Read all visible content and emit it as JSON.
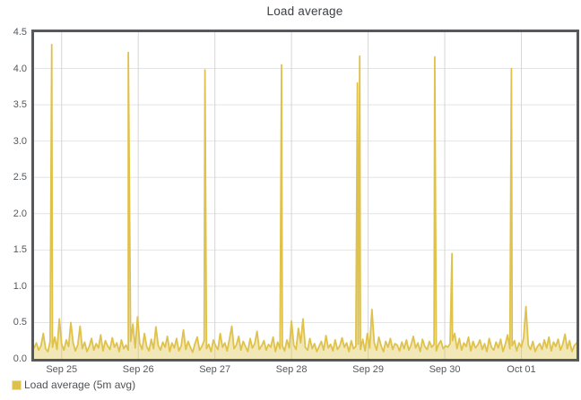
{
  "panel": {
    "title": "Load average"
  },
  "legend": {
    "label": "Load average (5m avg)",
    "swatch_color": "#dcc14e"
  },
  "colors": {
    "line": "#dfc24c",
    "fill": "rgba(223,194,76,0.40)",
    "axis_border": "#55585c",
    "grid_horizontal": "#e4e4e4",
    "grid_vertical": "#d6d6d6",
    "tick_label": "#55585c",
    "title_text": "#3b3e44",
    "background": "#ffffff"
  },
  "chart_data": {
    "type": "area",
    "title": "Load average",
    "legend_position": "bottom-left",
    "grid": true,
    "ylim": [
      0,
      4.5
    ],
    "y_ticks": [
      "0.0",
      "0.5",
      "1.0",
      "1.5",
      "2.0",
      "2.5",
      "3.0",
      "3.5",
      "4.0",
      "4.5"
    ],
    "x_unit": "days from left edge of plot",
    "xlim_days": [
      0,
      7.08
    ],
    "x_ticks": [
      {
        "label": "Sep 25",
        "t": 0.36
      },
      {
        "label": "Sep 26",
        "t": 1.36
      },
      {
        "label": "Sep 27",
        "t": 2.36
      },
      {
        "label": "Sep 28",
        "t": 3.36
      },
      {
        "label": "Sep 29",
        "t": 4.36
      },
      {
        "label": "Sep 30",
        "t": 5.36
      },
      {
        "label": "Oct 01",
        "t": 6.36
      }
    ],
    "series": [
      {
        "name": "Load average (5m avg)",
        "color": "#dfc24c",
        "baseline": {
          "dt_days": 0.03,
          "values": [
            0.15,
            0.22,
            0.12,
            0.18,
            0.35,
            0.14,
            0.1,
            0.24,
            0.16,
            0.3,
            0.13,
            0.55,
            0.2,
            0.12,
            0.26,
            0.17,
            0.5,
            0.22,
            0.11,
            0.19,
            0.45,
            0.14,
            0.23,
            0.1,
            0.17,
            0.28,
            0.12,
            0.21,
            0.15,
            0.33,
            0.11,
            0.25,
            0.18,
            0.13,
            0.29,
            0.16,
            0.22,
            0.1,
            0.26,
            0.14,
            0.19,
            0.12,
            0.24,
            0.48,
            0.15,
            0.58,
            0.21,
            0.13,
            0.35,
            0.17,
            0.11,
            0.27,
            0.14,
            0.44,
            0.19,
            0.12,
            0.23,
            0.16,
            0.31,
            0.1,
            0.22,
            0.15,
            0.28,
            0.11,
            0.18,
            0.4,
            0.13,
            0.24,
            0.16,
            0.09,
            0.21,
            0.3,
            0.12,
            0.17,
            0.25,
            0.14,
            0.2,
            0.1,
            0.26,
            0.18,
            0.13,
            0.35,
            0.16,
            0.22,
            0.11,
            0.27,
            0.45,
            0.14,
            0.19,
            0.31,
            0.12,
            0.24,
            0.17,
            0.1,
            0.28,
            0.15,
            0.21,
            0.38,
            0.13,
            0.18,
            0.25,
            0.12,
            0.2,
            0.16,
            0.3,
            0.1,
            0.23,
            0.14,
            0.18,
            0.11,
            0.26,
            0.15,
            0.52,
            0.19,
            0.13,
            0.42,
            0.22,
            0.55,
            0.16,
            0.12,
            0.28,
            0.14,
            0.21,
            0.1,
            0.17,
            0.24,
            0.12,
            0.32,
            0.15,
            0.2,
            0.11,
            0.26,
            0.13,
            0.18,
            0.29,
            0.16,
            0.22,
            0.1,
            0.25,
            0.14,
            0.17,
            0.2,
            0.13,
            0.27,
            0.11,
            0.35,
            0.15,
            0.68,
            0.22,
            0.12,
            0.3,
            0.18,
            0.1,
            0.24,
            0.16,
            0.28,
            0.13,
            0.21,
            0.19,
            0.11,
            0.23,
            0.14,
            0.26,
            0.12,
            0.19,
            0.31,
            0.15,
            0.22,
            0.1,
            0.27,
            0.17,
            0.13,
            0.24,
            0.16,
            0.2,
            0.11,
            0.2,
            0.25,
            0.14,
            0.18,
            0.16,
            0.21,
            0.25,
            0.35,
            0.14,
            0.28,
            0.12,
            0.22,
            0.17,
            0.3,
            0.11,
            0.24,
            0.15,
            0.19,
            0.26,
            0.13,
            0.21,
            0.1,
            0.28,
            0.16,
            0.12,
            0.23,
            0.15,
            0.27,
            0.1,
            0.2,
            0.33,
            0.14,
            0.18,
            0.25,
            0.11,
            0.22,
            0.16,
            0.29,
            0.72,
            0.19,
            0.13,
            0.24,
            0.1,
            0.17,
            0.21,
            0.13,
            0.26,
            0.15,
            0.3,
            0.11,
            0.23,
            0.17,
            0.27,
            0.12,
            0.2,
            0.34,
            0.14,
            0.25,
            0.1,
            0.18,
            0.22
          ]
        },
        "spikes": [
          [
            0.23,
            4.33
          ],
          [
            1.23,
            4.22
          ],
          [
            2.23,
            3.98
          ],
          [
            3.23,
            4.05
          ],
          [
            4.22,
            3.8
          ],
          [
            4.25,
            4.17
          ],
          [
            5.23,
            4.16
          ],
          [
            5.455,
            1.45
          ],
          [
            6.23,
            4.0
          ]
        ]
      }
    ]
  }
}
